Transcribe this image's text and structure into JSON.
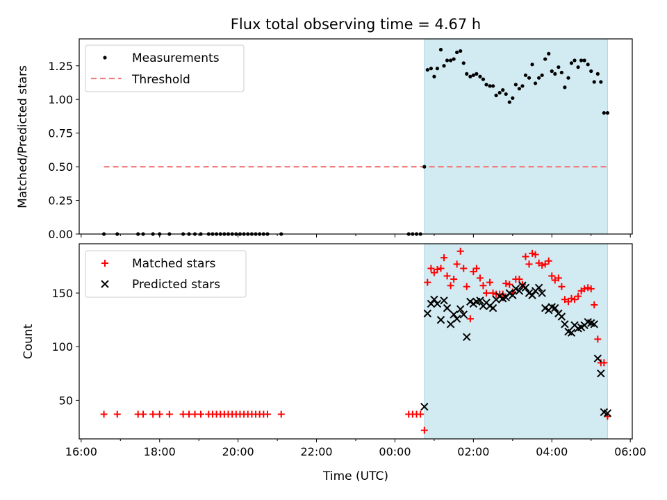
{
  "title": "Flux total observing time = 4.67 h",
  "colors": {
    "measurement": "#000000",
    "threshold": "#f08080",
    "matched": "#ff0000",
    "predicted": "#000000",
    "shade": "#add8e6"
  },
  "chart_data": [
    {
      "type": "scatter",
      "ylabel": "Matched/Predicted stars",
      "xlabel": "",
      "ylim": [
        0,
        1.45
      ],
      "yticks": [
        "0.00",
        "0.25",
        "0.50",
        "0.75",
        "1.00",
        "1.25"
      ],
      "xlim": [
        -0.05,
        14.05
      ],
      "x_unit": "hours since 16:00 UTC",
      "legend": {
        "placement": "top-left",
        "entries": [
          "Measurements",
          "Threshold"
        ]
      },
      "shaded_span": [
        8.75,
        13.42
      ],
      "threshold": {
        "name": "Threshold",
        "value": 0.5,
        "x": [
          0.58,
          13.42
        ]
      },
      "series": [
        {
          "name": "Measurements",
          "x": [
            0.58,
            0.92,
            1.45,
            1.58,
            1.83,
            2.0,
            2.25,
            2.6,
            2.75,
            2.9,
            3.05,
            3.25,
            3.35,
            3.45,
            3.55,
            3.65,
            3.75,
            3.85,
            3.95,
            4.05,
            4.15,
            4.25,
            4.35,
            4.45,
            4.55,
            4.65,
            4.75,
            5.1,
            8.35,
            8.45,
            8.55,
            8.65,
            8.75,
            8.83,
            8.92,
            9.0,
            9.08,
            9.17,
            9.25,
            9.33,
            9.42,
            9.5,
            9.58,
            9.67,
            9.75,
            9.83,
            9.92,
            10.0,
            10.08,
            10.17,
            10.25,
            10.33,
            10.42,
            10.5,
            10.58,
            10.67,
            10.75,
            10.83,
            10.92,
            11.0,
            11.08,
            11.17,
            11.25,
            11.33,
            11.42,
            11.5,
            11.58,
            11.67,
            11.75,
            11.83,
            11.92,
            12.0,
            12.08,
            12.17,
            12.25,
            12.33,
            12.42,
            12.5,
            12.58,
            12.67,
            12.75,
            12.83,
            12.92,
            13.0,
            13.08,
            13.17,
            13.25,
            13.33,
            13.42
          ],
          "y": [
            0,
            0,
            0,
            0,
            0,
            0,
            0,
            0,
            0,
            0,
            0,
            0,
            0,
            0,
            0,
            0,
            0,
            0,
            0,
            0,
            0,
            0,
            0,
            0,
            0,
            0,
            0,
            0,
            0,
            0,
            0,
            0,
            0.5,
            1.22,
            1.23,
            1.17,
            1.23,
            1.37,
            1.25,
            1.29,
            1.29,
            1.3,
            1.35,
            1.36,
            1.27,
            1.19,
            1.17,
            1.18,
            1.19,
            1.17,
            1.15,
            1.11,
            1.1,
            1.1,
            1.03,
            1.05,
            1.07,
            1.04,
            0.98,
            1.01,
            1.11,
            1.08,
            1.1,
            1.18,
            1.16,
            1.26,
            1.12,
            1.16,
            1.18,
            1.3,
            1.34,
            1.21,
            1.19,
            1.24,
            1.2,
            1.09,
            1.16,
            1.27,
            1.29,
            1.24,
            1.29,
            1.29,
            1.26,
            1.21,
            1.13,
            1.19,
            1.13,
            0.9,
            0.9
          ]
        }
      ]
    },
    {
      "type": "scatter",
      "ylabel": "Count",
      "xlabel": "Time (UTC)",
      "ylim": [
        14,
        196
      ],
      "yticks": [
        "50",
        "100",
        "150"
      ],
      "xlim": [
        -0.05,
        14.05
      ],
      "xticks": [
        "16:00",
        "18:00",
        "20:00",
        "22:00",
        "00:00",
        "02:00",
        "04:00",
        "06:00"
      ],
      "x_unit": "hours since 16:00 UTC",
      "legend": {
        "placement": "top-left",
        "entries": [
          "Matched stars",
          "Predicted stars"
        ]
      },
      "shaded_span": [
        8.75,
        13.42
      ],
      "series": [
        {
          "name": "Matched stars",
          "x": [
            0.58,
            0.92,
            1.45,
            1.58,
            1.83,
            2.0,
            2.25,
            2.6,
            2.75,
            2.9,
            3.05,
            3.25,
            3.35,
            3.45,
            3.55,
            3.65,
            3.75,
            3.85,
            3.95,
            4.05,
            4.15,
            4.25,
            4.35,
            4.45,
            4.55,
            4.65,
            4.75,
            5.1,
            8.35,
            8.45,
            8.55,
            8.65,
            8.75,
            8.83,
            8.92,
            9.0,
            9.08,
            9.17,
            9.25,
            9.33,
            9.42,
            9.5,
            9.58,
            9.67,
            9.75,
            9.83,
            9.92,
            10.0,
            10.08,
            10.17,
            10.25,
            10.33,
            10.42,
            10.5,
            10.58,
            10.67,
            10.75,
            10.83,
            10.92,
            11.0,
            11.08,
            11.17,
            11.25,
            11.33,
            11.42,
            11.5,
            11.58,
            11.67,
            11.75,
            11.83,
            11.92,
            12.0,
            12.08,
            12.17,
            12.25,
            12.33,
            12.42,
            12.5,
            12.58,
            12.67,
            12.75,
            12.83,
            12.92,
            13.0,
            13.08,
            13.17,
            13.25,
            13.33,
            13.42
          ],
          "y": [
            37,
            37,
            37,
            37,
            37,
            37,
            37,
            37,
            37,
            37,
            37,
            37,
            37,
            37,
            37,
            37,
            37,
            37,
            37,
            37,
            37,
            37,
            37,
            37,
            37,
            37,
            37,
            37,
            37,
            37,
            37,
            37,
            22,
            160,
            173,
            169,
            172,
            173,
            183,
            166,
            157,
            163,
            177,
            189,
            173,
            156,
            126,
            170,
            173,
            164,
            157,
            150,
            160,
            150,
            149,
            149,
            149,
            159,
            158,
            151,
            163,
            163,
            158,
            184,
            177,
            187,
            186,
            178,
            176,
            177,
            180,
            166,
            162,
            164,
            156,
            144,
            142,
            145,
            144,
            147,
            152,
            154,
            155,
            154,
            139,
            107,
            85,
            85,
            35
          ]
        },
        {
          "name": "Predicted stars",
          "x": [
            8.75,
            8.83,
            8.92,
            9.0,
            9.08,
            9.17,
            9.25,
            9.33,
            9.42,
            9.5,
            9.58,
            9.67,
            9.75,
            9.83,
            9.92,
            10.0,
            10.08,
            10.17,
            10.25,
            10.33,
            10.42,
            10.5,
            10.58,
            10.67,
            10.75,
            10.83,
            10.92,
            11.0,
            11.08,
            11.17,
            11.25,
            11.33,
            11.42,
            11.5,
            11.58,
            11.67,
            11.75,
            11.83,
            11.92,
            12.0,
            12.08,
            12.17,
            12.25,
            12.33,
            12.42,
            12.5,
            12.58,
            12.67,
            12.75,
            12.83,
            12.92,
            13.0,
            13.08,
            13.17,
            13.25,
            13.33,
            13.42
          ],
          "y": [
            44,
            131,
            140,
            144,
            140,
            125,
            143,
            136,
            121,
            130,
            126,
            135,
            130,
            109,
            142,
            140,
            142,
            143,
            138,
            141,
            138,
            136,
            144,
            147,
            145,
            146,
            150,
            148,
            154,
            152,
            157,
            155,
            150,
            148,
            152,
            155,
            150,
            136,
            134,
            137,
            136,
            131,
            128,
            121,
            114,
            113,
            120,
            117,
            118,
            120,
            123,
            122,
            121,
            89,
            75,
            39,
            38
          ]
        }
      ]
    }
  ]
}
